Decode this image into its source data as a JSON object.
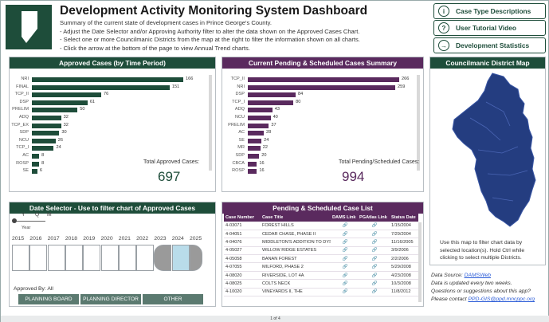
{
  "header": {
    "title": "Development Activity Monitoring System Dashboard",
    "lines": [
      "Summary of the current state of development cases in Prince George's County.",
      "- Adjust the Date Selector and/or Approving Authority filter to alter the data shown on the Approved Cases Chart.",
      "- Select one or more Councilmanic Districts from the map at the right to filter the information shown on all charts.",
      "- Click the arrow at the bottom of the page to view Annual Trend charts."
    ]
  },
  "nav": [
    {
      "label": "Case Type Descriptions",
      "icon": "info-icon",
      "glyph": "i"
    },
    {
      "label": "User Tutorial Video",
      "icon": "question-icon",
      "glyph": "?"
    },
    {
      "label": "Development Statistics",
      "icon": "arrow-right-icon",
      "glyph": "→"
    }
  ],
  "approved": {
    "title": "Approved Cases (by Time Period)",
    "color": "#1e4d3a",
    "total_label": "Total Approved Cases:",
    "total": "697",
    "chart_data": {
      "type": "bar",
      "categories": [
        "NRI",
        "FINAL",
        "TCP_II",
        "DSP",
        "PRELIM",
        "ADQ",
        "TCP_EX",
        "SDP",
        "NCU",
        "TCP_I",
        "AC",
        "ROSP",
        "SE"
      ],
      "values": [
        166,
        151,
        76,
        61,
        50,
        32,
        32,
        30,
        26,
        24,
        8,
        8,
        6
      ]
    }
  },
  "pending": {
    "title": "Current Pending & Scheduled Cases Summary",
    "color": "#5a2a5e",
    "total_label": "Total Pending/Scheduled Cases:",
    "total": "994",
    "chart_data": {
      "type": "bar",
      "categories": [
        "TCP_II",
        "NRI",
        "DSP",
        "TCP_I",
        "ADQ",
        "NCU",
        "PRELIM",
        "AC",
        "SE",
        "MR",
        "SDP",
        "CBCA",
        "ROSP"
      ],
      "values": [
        266,
        259,
        84,
        80,
        43,
        40,
        37,
        28,
        24,
        22,
        20,
        16,
        16
      ]
    }
  },
  "map": {
    "title": "Councilmanic District Map",
    "caption": "Use this map to filter chart data by selected location(s). Hold Ctrl while clicking to select multiple Districts."
  },
  "date_selector": {
    "title": "Date Selector - Use to filter chart of Approved Cases",
    "levels": [
      "Y",
      "Q",
      "M"
    ],
    "level_label": "Year",
    "years": [
      "2015",
      "2016",
      "2017",
      "2018",
      "2019",
      "2020",
      "2021",
      "2022",
      "2023",
      "2024",
      "2025"
    ],
    "approved_by": "Approved By: All",
    "buttons": [
      "PLANNING BOARD",
      "PLANNING DIRECTOR",
      "OTHER"
    ]
  },
  "case_list": {
    "title": "Pending & Scheduled Case List",
    "columns": [
      "Case Number",
      "Case Title",
      "DAMS Link",
      "PGAtlas Link",
      "Status Date"
    ],
    "rows": [
      [
        "4-03071",
        "FOREST HILLS",
        "1/15/2004"
      ],
      [
        "4-04051",
        "CEDAR CHASE, PHASE II",
        "7/29/2004"
      ],
      [
        "4-04076",
        "MIDDLETON'S ADDITION TO DYSON",
        "11/16/2005"
      ],
      [
        "4-05027",
        "WILLOW RIDGE ESTATES",
        "3/9/2006"
      ],
      [
        "4-05058",
        "BANAN FOREST",
        "2/2/2006"
      ],
      [
        "4-07055",
        "MILFORD, PHASE 2",
        "5/29/2008"
      ],
      [
        "4-08020",
        "RIVERSIDE, LOT 4A",
        "4/23/2008"
      ],
      [
        "4-08025",
        "COLTS NECK",
        "10/3/2008"
      ],
      [
        "4-10020",
        "VINEYARDS II, THE",
        "11/8/2012"
      ]
    ]
  },
  "info": {
    "source_prefix": "Data Source: ",
    "source_link": "DAMSWeb",
    "line2": "Data is updated every two weeks.",
    "line3": "Questions or suggestions about this app?",
    "line4_prefix": "Please contact ",
    "line4_email": "PPD-GIS@ppd.mncppc.org"
  },
  "footer": {
    "page": "1 of 4"
  }
}
